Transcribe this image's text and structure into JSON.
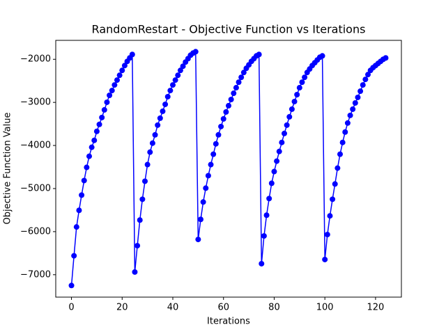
{
  "chart_data": {
    "type": "line",
    "title": "RandomRestart - Objective Function vs Iterations",
    "xlabel": "Iterations",
    "ylabel": "Objective Function Value",
    "x": [
      0,
      1,
      2,
      3,
      4,
      5,
      6,
      7,
      8,
      9,
      10,
      11,
      12,
      13,
      14,
      15,
      16,
      17,
      18,
      19,
      20,
      21,
      22,
      23,
      24,
      25,
      26,
      27,
      28,
      29,
      30,
      31,
      32,
      33,
      34,
      35,
      36,
      37,
      38,
      39,
      40,
      41,
      42,
      43,
      44,
      45,
      46,
      47,
      48,
      49,
      50,
      51,
      52,
      53,
      54,
      55,
      56,
      57,
      58,
      59,
      60,
      61,
      62,
      63,
      64,
      65,
      66,
      67,
      68,
      69,
      70,
      71,
      72,
      73,
      74,
      75,
      76,
      77,
      78,
      79,
      80,
      81,
      82,
      83,
      84,
      85,
      86,
      87,
      88,
      89,
      90,
      91,
      92,
      93,
      94,
      95,
      96,
      97,
      98,
      99,
      100,
      101,
      102,
      103,
      104,
      105,
      106,
      107,
      108,
      109,
      110,
      111,
      112,
      113,
      114,
      115,
      116,
      117,
      118,
      119,
      120,
      121,
      122,
      123,
      124
    ],
    "series": [
      {
        "color": "#0000ff",
        "values": [
          -7250,
          -6560,
          -5891,
          -5505,
          -5152,
          -4814,
          -4508,
          -4251,
          -4042,
          -3881,
          -3672,
          -3511,
          -3351,
          -3174,
          -2997,
          -2836,
          -2724,
          -2595,
          -2482,
          -2370,
          -2257,
          -2145,
          -2048,
          -1968,
          -1887,
          -6937,
          -6326,
          -5731,
          -5248,
          -4830,
          -4444,
          -4155,
          -3946,
          -3753,
          -3528,
          -3367,
          -3206,
          -3045,
          -2868,
          -2724,
          -2595,
          -2482,
          -2370,
          -2257,
          -2161,
          -2064,
          -1984,
          -1904,
          -1855,
          -1823,
          -6181,
          -5715,
          -5312,
          -4991,
          -4701,
          -4444,
          -4203,
          -3962,
          -3753,
          -3560,
          -3383,
          -3222,
          -3077,
          -2933,
          -2788,
          -2659,
          -2531,
          -2418,
          -2306,
          -2209,
          -2129,
          -2048,
          -1984,
          -1920,
          -1887,
          -6744,
          -6100,
          -5618,
          -5232,
          -4878,
          -4605,
          -4364,
          -4139,
          -3930,
          -3721,
          -3528,
          -3335,
          -3158,
          -2981,
          -2820,
          -2659,
          -2531,
          -2418,
          -2306,
          -2225,
          -2145,
          -2080,
          -2016,
          -1952,
          -1920,
          -6647,
          -6068,
          -5634,
          -5248,
          -4894,
          -4525,
          -4203,
          -3930,
          -3688,
          -3479,
          -3302,
          -3158,
          -3013,
          -2884,
          -2740,
          -2595,
          -2466,
          -2354,
          -2257,
          -2193,
          -2145,
          -2096,
          -2048,
          -2000,
          -1968
        ]
      }
    ],
    "xlim": [
      -6.2,
      130.2
    ],
    "ylim": [
      -7520,
      -1560
    ],
    "xticks": [
      0,
      20,
      40,
      60,
      80,
      100,
      120
    ],
    "yticks": [
      {
        "value": -7000,
        "label": "−7000"
      },
      {
        "value": -6000,
        "label": "−6000"
      },
      {
        "value": -5000,
        "label": "−5000"
      },
      {
        "value": -4000,
        "label": "−4000"
      },
      {
        "value": -3000,
        "label": "−3000"
      },
      {
        "value": -2000,
        "label": "−2000"
      }
    ],
    "grid": false
  }
}
